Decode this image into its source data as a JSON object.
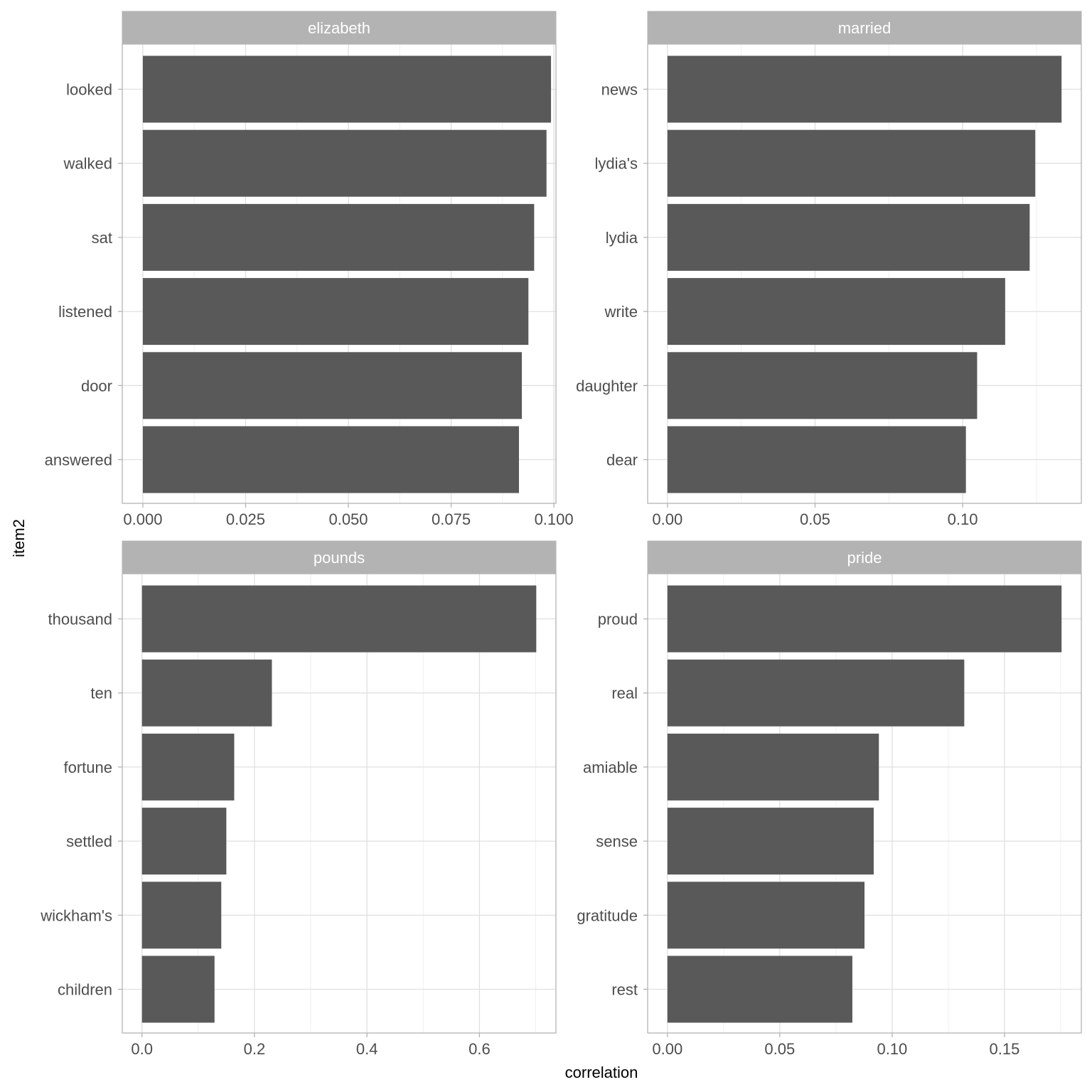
{
  "chart_data": {
    "type": "bar",
    "orientation": "horizontal",
    "facet_layout": "2x2 grid",
    "xlabel": "correlation",
    "ylabel": "item2",
    "colors": {
      "bar": "#595959",
      "strip_background": "#b3b3b3",
      "strip_text": "#ffffff",
      "panel_border": "#b3b3b3",
      "grid_major": "#e0e0e0",
      "grid_minor": "#f0f0f0",
      "axis_text": "#4d4d4d",
      "title_text": "#000000"
    },
    "grid": true,
    "facets": [
      {
        "name": "elizabeth",
        "categories": [
          "looked",
          "walked",
          "sat",
          "listened",
          "door",
          "answered"
        ],
        "values": [
          0.0993,
          0.0982,
          0.0952,
          0.0938,
          0.0922,
          0.0915
        ],
        "xlim": [
          -0.005,
          0.1005
        ],
        "ticks": [
          0,
          0.025,
          0.05,
          0.075,
          0.1
        ],
        "tick_labels": [
          "0.000",
          "0.025",
          "0.050",
          "0.075",
          "0.100"
        ],
        "minor_ticks": [
          0.0125,
          0.0375,
          0.0625,
          0.0875
        ]
      },
      {
        "name": "married",
        "categories": [
          "news",
          "lydia's",
          "lydia",
          "write",
          "daughter",
          "dear"
        ],
        "values": [
          0.1335,
          0.1246,
          0.1227,
          0.1144,
          0.1049,
          0.1011
        ],
        "xlim": [
          -0.0067,
          0.1402
        ],
        "ticks": [
          0,
          0.05,
          0.1
        ],
        "tick_labels": [
          "0.00",
          "0.05",
          "0.10"
        ],
        "minor_ticks": [
          0.025,
          0.075,
          0.125
        ]
      },
      {
        "name": "pounds",
        "categories": [
          "thousand",
          "ten",
          "fortune",
          "settled",
          "wickham's",
          "children"
        ],
        "values": [
          0.701,
          0.231,
          0.164,
          0.15,
          0.141,
          0.129
        ],
        "xlim": [
          -0.035,
          0.736
        ],
        "ticks": [
          0,
          0.2,
          0.4,
          0.6
        ],
        "tick_labels": [
          "0.0",
          "0.2",
          "0.4",
          "0.6"
        ],
        "minor_ticks": [
          0.1,
          0.3,
          0.5,
          0.7
        ]
      },
      {
        "name": "pride",
        "categories": [
          "proud",
          "real",
          "amiable",
          "sense",
          "gratitude",
          "rest"
        ],
        "values": [
          0.1754,
          0.1321,
          0.0941,
          0.0918,
          0.0877,
          0.0823
        ],
        "xlim": [
          -0.0088,
          0.1842
        ],
        "ticks": [
          0,
          0.05,
          0.1,
          0.15
        ],
        "tick_labels": [
          "0.00",
          "0.05",
          "0.10",
          "0.15"
        ],
        "minor_ticks": [
          0.025,
          0.075,
          0.125,
          0.175
        ]
      }
    ]
  }
}
